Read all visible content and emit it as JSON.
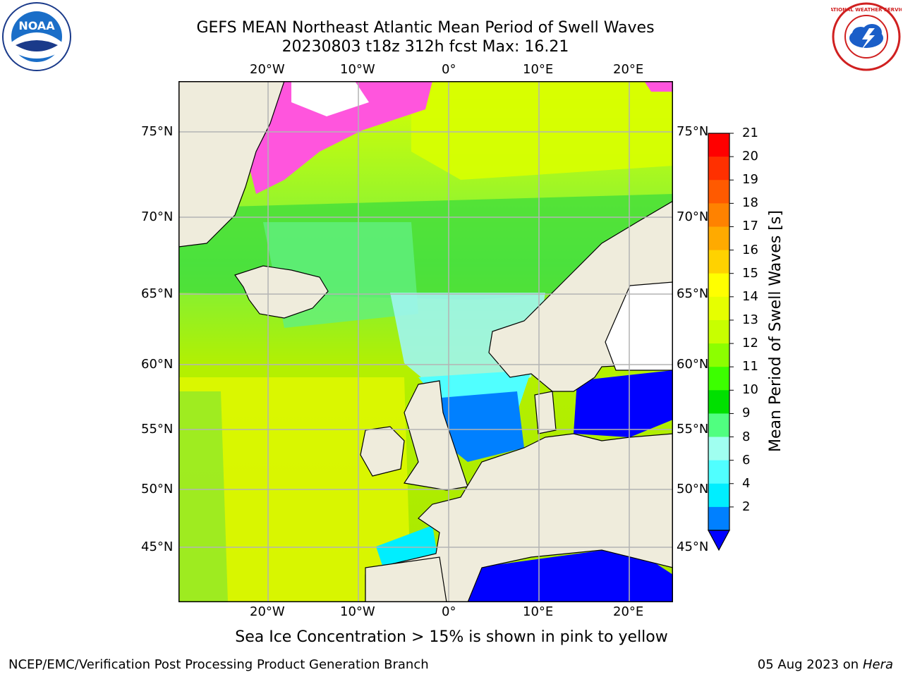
{
  "header": {
    "title": "GEFS MEAN Northeast Atlantic Mean Period of Swell Waves",
    "subtitle": "20230803 t18z 312h fcst   Max: 16.21"
  },
  "map": {
    "lon_labels": [
      "20°W",
      "10°W",
      "0°",
      "10°E",
      "20°E"
    ],
    "lat_labels": [
      "75°N",
      "70°N",
      "65°N",
      "60°N",
      "55°N",
      "50°N",
      "45°N"
    ],
    "land_color": "#efecdc"
  },
  "colorbar": {
    "label": "Mean Period of Swell Waves [s]",
    "ticks": [
      "21",
      "20",
      "19",
      "18",
      "17",
      "16",
      "15",
      "14",
      "13",
      "12",
      "11",
      "10",
      "9",
      "8",
      "6",
      "4",
      "2"
    ],
    "colors": [
      "#ff0000",
      "#ff3000",
      "#ff5a00",
      "#ff8200",
      "#ffaa00",
      "#ffd200",
      "#ffff00",
      "#e6ff00",
      "#c8ff00",
      "#8cff00",
      "#3cff00",
      "#00e000",
      "#50ff80",
      "#a0fff0",
      "#50ffff",
      "#00eeff",
      "#0080ff"
    ],
    "extend_color": "#0000ff"
  },
  "note": "Sea Ice Concentration > 15% is shown in pink to yellow",
  "footer": {
    "left": "NCEP/EMC/Verification Post Processing Product Generation Branch",
    "date": "05 Aug 2023 on",
    "system": "Hera"
  },
  "logos": {
    "left_text": "NOAA",
    "right_text": "NATIONAL WEATHER SERVICE"
  }
}
